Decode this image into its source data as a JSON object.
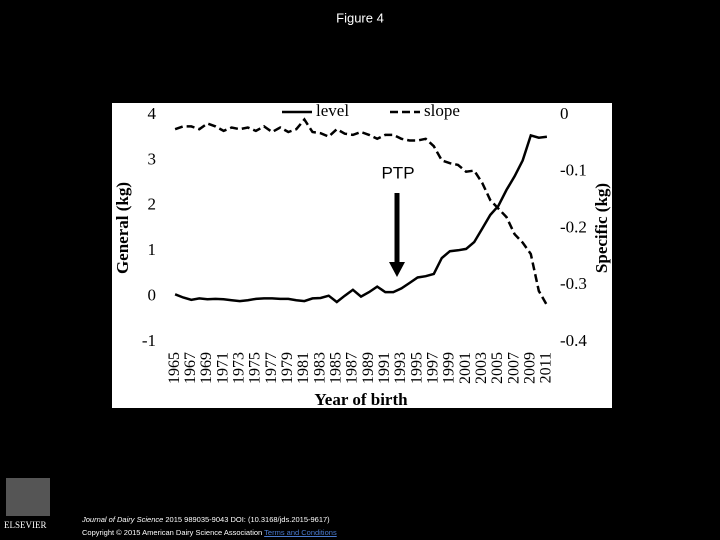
{
  "header": {
    "title": "Figure 4"
  },
  "chart_data": {
    "type": "line",
    "x_label": "Year of birth",
    "y_label": "General (kg)",
    "y2_label": "Specific (kg)",
    "annotation": "PTP",
    "x": [
      1965,
      1966,
      1967,
      1968,
      1969,
      1970,
      1971,
      1972,
      1973,
      1974,
      1975,
      1976,
      1977,
      1978,
      1979,
      1980,
      1981,
      1982,
      1983,
      1984,
      1985,
      1986,
      1987,
      1988,
      1989,
      1990,
      1991,
      1992,
      1993,
      1994,
      1995,
      1996,
      1997,
      1998,
      1999,
      2000,
      2001,
      2002,
      2003,
      2004,
      2005,
      2006,
      2007,
      2008,
      2009,
      2010,
      2011
    ],
    "xlim": [
      1964,
      2012
    ],
    "xticks": [
      1965,
      1967,
      1969,
      1971,
      1973,
      1975,
      1977,
      1979,
      1981,
      1983,
      1985,
      1987,
      1989,
      1991,
      1993,
      1995,
      1997,
      1999,
      2001,
      2003,
      2005,
      2007,
      2009,
      2011
    ],
    "ylim": [
      -1,
      4
    ],
    "yticks": [
      -1,
      0,
      1,
      2,
      3,
      4
    ],
    "y2lim": [
      -0.4,
      0
    ],
    "y2ticks": [
      -0.4,
      -0.3,
      -0.2,
      -0.1,
      0
    ],
    "legend": "top",
    "series": [
      {
        "name": "level",
        "color": "#000000",
        "dash": "solid",
        "values": [
          0.05,
          -0.02,
          -0.07,
          -0.04,
          -0.06,
          -0.05,
          -0.06,
          -0.08,
          -0.1,
          -0.08,
          -0.05,
          -0.04,
          -0.04,
          -0.05,
          -0.05,
          -0.08,
          -0.1,
          -0.04,
          -0.03,
          0.02,
          -0.12,
          0.02,
          0.15,
          0.0,
          0.1,
          0.22,
          0.1,
          0.1,
          0.18,
          0.3,
          0.42,
          0.45,
          0.5,
          0.85,
          1.0,
          1.02,
          1.05,
          1.2,
          1.5,
          1.8,
          2.0,
          2.35,
          2.65,
          3.0,
          3.55,
          3.5,
          3.52
        ]
      },
      {
        "name": "slope",
        "color": "#000000",
        "dash": "dashed",
        "axis": "y2",
        "values": [
          -0.025,
          -0.02,
          -0.02,
          -0.025,
          -0.015,
          -0.02,
          -0.028,
          -0.022,
          -0.025,
          -0.022,
          -0.028,
          -0.02,
          -0.03,
          -0.022,
          -0.03,
          -0.025,
          -0.008,
          -0.03,
          -0.032,
          -0.038,
          -0.025,
          -0.033,
          -0.035,
          -0.03,
          -0.035,
          -0.042,
          -0.035,
          -0.035,
          -0.042,
          -0.045,
          -0.045,
          -0.042,
          -0.055,
          -0.08,
          -0.085,
          -0.088,
          -0.1,
          -0.098,
          -0.12,
          -0.15,
          -0.165,
          -0.18,
          -0.21,
          -0.225,
          -0.245,
          -0.31,
          -0.335
        ]
      }
    ]
  },
  "footer": {
    "journal": "Journal of Dairy Science",
    "citation": "2015 989035-9043 DOI: (10.3168/jds.2015-9617)",
    "copyright": "Copyright © 2015 American Dairy Science Association",
    "link": "Terms and Conditions",
    "logo": "ELSEVIER"
  }
}
